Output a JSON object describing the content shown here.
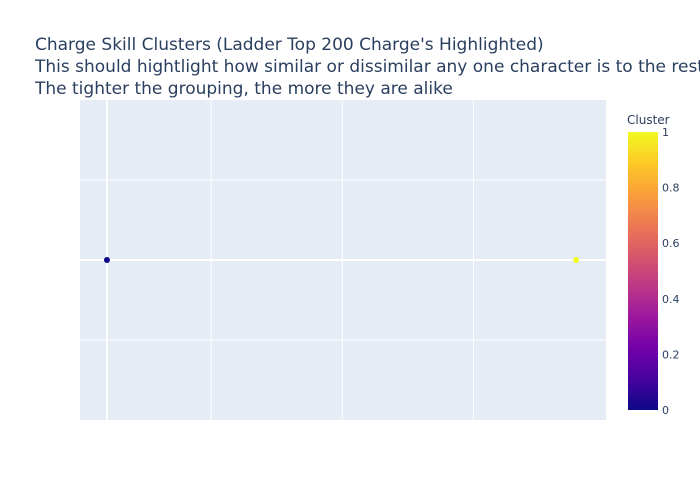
{
  "chart_data": {
    "type": "scatter",
    "title_lines": [
      "Charge Skill Clusters (Ladder Top 200 Charge's Highlighted)",
      "This should hightlight how similar or dissimilar any one character is to the rest.",
      "The tighter the grouping, the more they are alike"
    ],
    "xlim": [
      -0.054,
      1.0
    ],
    "ylim": [
      -1,
      1
    ],
    "x_gridlines": [
      0.2088,
      0.4716,
      0.7344
    ],
    "y_gridlines": [
      -0.5,
      0.5
    ],
    "zero_lines": {
      "x": true,
      "y": true
    },
    "points": [
      {
        "x": 0.0,
        "y": 0,
        "cluster": 0
      },
      {
        "x": 0.94,
        "y": 0,
        "cluster": 1
      }
    ],
    "colorbar": {
      "title": "Cluster",
      "range": [
        0,
        1
      ],
      "ticks": [
        "0",
        "0.2",
        "0.4",
        "0.6",
        "0.8",
        "1"
      ],
      "tick_values": [
        0,
        0.2,
        0.4,
        0.6,
        0.8,
        1
      ],
      "colorscale": [
        "#0d0887",
        "#46039f",
        "#7201a8",
        "#9c179e",
        "#bd3786",
        "#d8576b",
        "#ed7953",
        "#fb9f3a",
        "#fdca26",
        "#f0f921"
      ]
    },
    "grid": true,
    "plot_bg": "#e5ecf6",
    "grid_color": "#ffffff"
  }
}
